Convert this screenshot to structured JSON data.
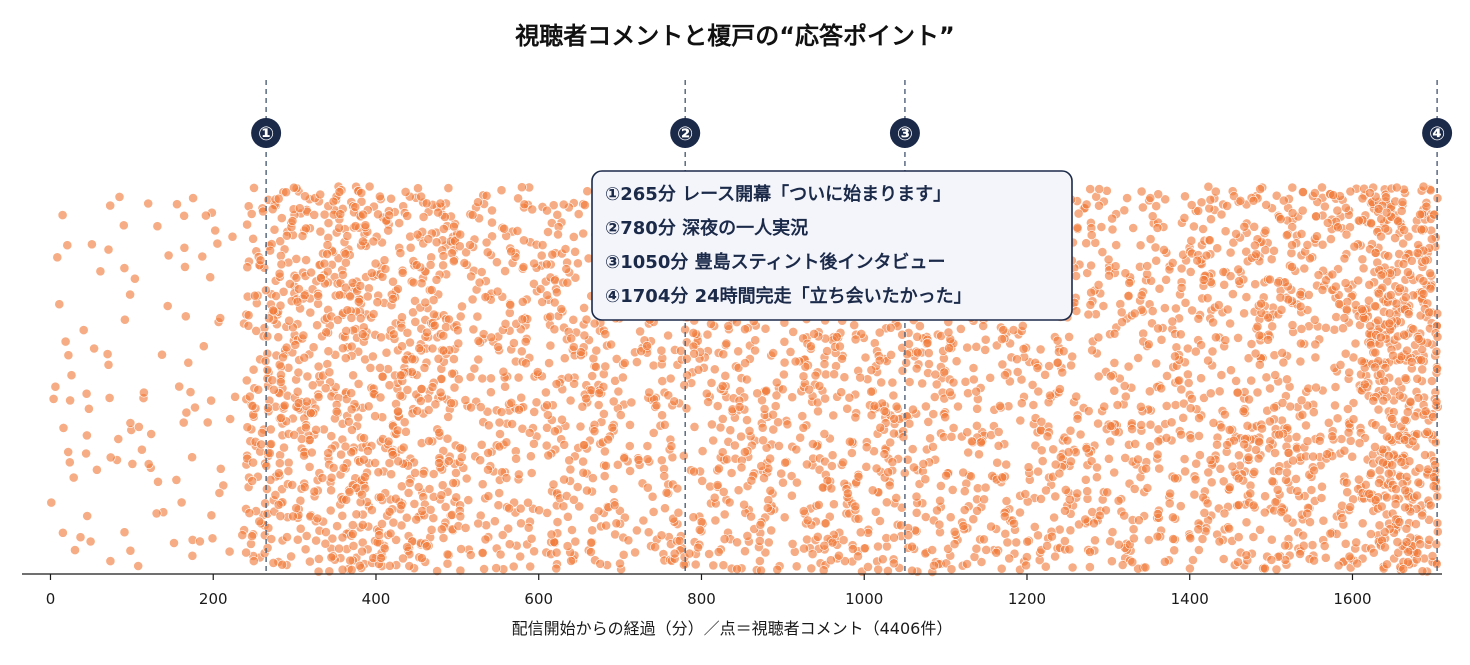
{
  "chart_data": {
    "type": "scatter",
    "title": "視聴者コメントと榎戸の“応答ポイント”",
    "xlabel": "配信開始からの経過（分）／点＝視聴者コメント（4406件）",
    "ylabel": "",
    "xlim": [
      -35,
      1710
    ],
    "xticks": [
      0,
      200,
      400,
      600,
      800,
      1000,
      1200,
      1400,
      1600
    ],
    "tick_labels": [
      "0",
      "200",
      "400",
      "600",
      "800",
      "1000",
      "1200",
      "1400",
      "1600"
    ],
    "series": [
      {
        "count": 4406,
        "color": "#f07a3a",
        "density_profile": [
          {
            "from": 0,
            "to": 240,
            "relative_density": 0.12
          },
          {
            "from": 240,
            "to": 500,
            "relative_density": 1.0
          },
          {
            "from": 500,
            "to": 760,
            "relative_density": 0.62
          },
          {
            "from": 760,
            "to": 1100,
            "relative_density": 0.7
          },
          {
            "from": 1100,
            "to": 1400,
            "relative_density": 0.62
          },
          {
            "from": 1400,
            "to": 1620,
            "relative_density": 0.82
          },
          {
            "from": 1620,
            "to": 1705,
            "relative_density": 1.6
          }
        ]
      }
    ],
    "response_points": [
      {
        "marker": "①",
        "x": 265
      },
      {
        "marker": "②",
        "x": 780
      },
      {
        "marker": "③",
        "x": 1050
      },
      {
        "marker": "④",
        "x": 1704
      }
    ],
    "annotation_lines": [
      "①265分 レース開幕「ついに始まります」",
      "②780分 深夜の一人実況",
      "③1050分 豊島スティント後インタビュー",
      "④1704分 24時間完走「立ち会いたかった」"
    ],
    "grid": false,
    "legend": "none",
    "colors": {
      "point_fill": "#f07a3a",
      "point_stroke": "#ffffff",
      "marker_fill": "#1c2a4a",
      "marker_line": "#5a6a80",
      "annotation_bg": "#f3f5fa",
      "annotation_border": "#1c2a4a",
      "annotation_text": "#1c2a4a"
    }
  }
}
